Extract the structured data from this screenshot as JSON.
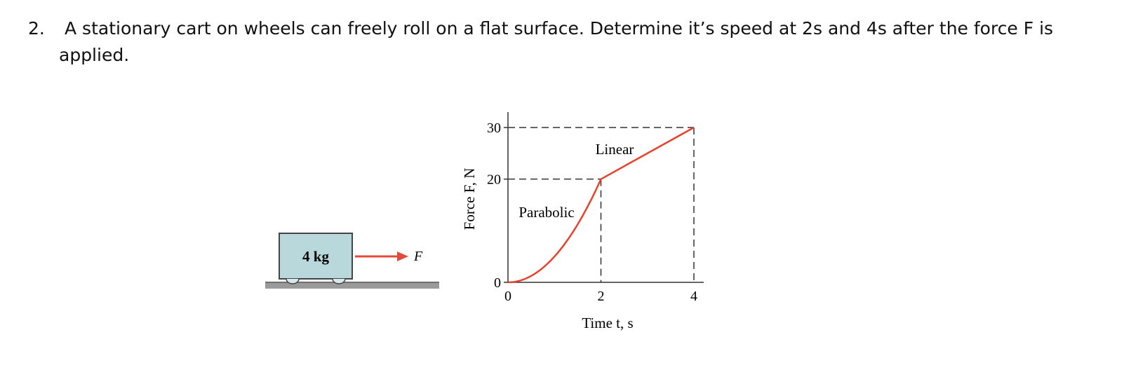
{
  "problem": {
    "number": "2.",
    "line1": "A stationary cart on wheels can freely roll on a flat surface.  Determine it’s speed at 2s and 4s after the force F is",
    "line2": "applied."
  },
  "cart": {
    "mass_label": "4 kg",
    "force_label": "F"
  },
  "chart_data": {
    "type": "line",
    "xlabel": "Time t, s",
    "ylabel": "Force F, N",
    "x_ticks": [
      "0",
      "2",
      "4"
    ],
    "y_ticks": [
      "0",
      "20",
      "30"
    ],
    "xlim": [
      0,
      4
    ],
    "ylim": [
      0,
      30
    ],
    "segments": [
      {
        "label": "Parabolic",
        "shape": "parabolic",
        "points": [
          [
            0,
            0
          ],
          [
            2,
            20
          ]
        ]
      },
      {
        "label": "Linear",
        "shape": "linear",
        "points": [
          [
            2,
            20
          ],
          [
            4,
            30
          ]
        ]
      }
    ]
  },
  "colors": {
    "curve": "#e8412c",
    "cart_fill": "#b8d8dc",
    "ground": "#8a8a8a",
    "arrow": "#e24a3a"
  }
}
